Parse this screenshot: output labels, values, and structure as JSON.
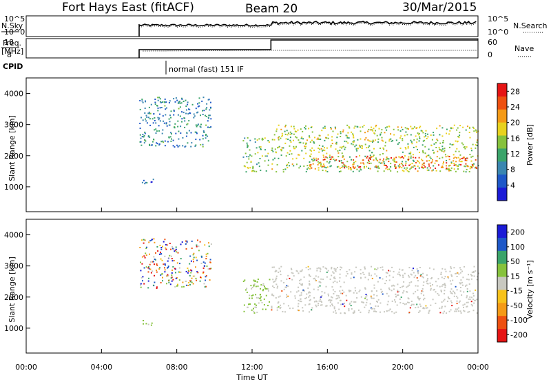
{
  "header": {
    "station": "Fort Hays East (fitACF)",
    "beam": "Beam 20",
    "date": "30/Mar/2015"
  },
  "panels": {
    "nsky": {
      "label": "N.Sky",
      "ticks_left": [
        "10^5",
        "10^0"
      ],
      "ticks_right": [
        "10^5",
        "10^0"
      ],
      "right_label": "N.Search"
    },
    "freq": {
      "label_top": "Freq.",
      "label_bot": "[MHz]",
      "ticks_left": [
        "18",
        "8"
      ],
      "ticks_right": [
        "60",
        "0"
      ],
      "right_label": "Nave"
    },
    "cpid": {
      "label": "CPID",
      "text": "normal (fast) 151 IF"
    }
  },
  "colors": {
    "power": [
      "#1b1bd6",
      "#1e58c8",
      "#3a86b0",
      "#3aa46a",
      "#86c23c",
      "#e8d21e",
      "#f49a16",
      "#ee5010",
      "#e61414"
    ],
    "velocity": [
      "#e61414",
      "#ee5010",
      "#f49a16",
      "#f7c21a",
      "#c8c8c0",
      "#86c23c",
      "#3aa46a",
      "#1e58c8",
      "#1b1bd6"
    ],
    "ground": "#c8c8c0"
  },
  "chart_data": [
    {
      "type": "heatmap",
      "name": "power",
      "ylabel": "Slant Range [km]",
      "xlabel": "",
      "xlim": [
        0,
        24
      ],
      "ylim": [
        200,
        4500
      ],
      "yticks": [
        "1000",
        "2000",
        "3000",
        "4000"
      ],
      "xticks": [
        "00:00",
        "04:00",
        "08:00",
        "12:00",
        "16:00",
        "20:00",
        "00:00"
      ],
      "colorbar": {
        "label": "Power [dB]",
        "ticks": [
          "4",
          "8",
          "12",
          "16",
          "20",
          "24",
          "28"
        ],
        "range": [
          0,
          30
        ]
      },
      "regions": [
        {
          "t0": 6.0,
          "t1": 9.8,
          "r0": 2300,
          "r1": 3900,
          "level": 8
        },
        {
          "t0": 6.0,
          "t1": 6.8,
          "r0": 1100,
          "r1": 1300,
          "level": 6
        },
        {
          "t0": 11.5,
          "t1": 12.9,
          "r0": 1500,
          "r1": 2600,
          "level": 14
        },
        {
          "t0": 13.0,
          "t1": 24.0,
          "r0": 1500,
          "r1": 3000,
          "level": 16
        },
        {
          "t0": 15.0,
          "t1": 24.0,
          "r0": 1600,
          "r1": 2000,
          "level": 26
        }
      ]
    },
    {
      "type": "heatmap",
      "name": "velocity",
      "ylabel": "Slant Range [km]",
      "xlabel": "Time UT",
      "xlim": [
        0,
        24
      ],
      "ylim": [
        200,
        4500
      ],
      "yticks": [
        "1000",
        "2000",
        "3000",
        "4000"
      ],
      "xticks": [
        "00:00",
        "04:00",
        "08:00",
        "12:00",
        "16:00",
        "20:00",
        "00:00"
      ],
      "colorbar": {
        "label": "Velocity [m s⁻¹]",
        "ticks": [
          "200",
          "100",
          "50",
          "15",
          "-15",
          "-50",
          "-100",
          "-200"
        ],
        "range": [
          -250,
          250
        ]
      },
      "regions": [
        {
          "t0": 6.0,
          "t1": 9.8,
          "r0": 2300,
          "r1": 3900,
          "level": "mixed"
        },
        {
          "t0": 6.0,
          "t1": 6.8,
          "r0": 1100,
          "r1": 1300,
          "level": "green"
        },
        {
          "t0": 11.5,
          "t1": 12.9,
          "r0": 1500,
          "r1": 2600,
          "level": "green"
        },
        {
          "t0": 13.0,
          "t1": 24.0,
          "r0": 1500,
          "r1": 3000,
          "level": "ground"
        }
      ]
    }
  ]
}
